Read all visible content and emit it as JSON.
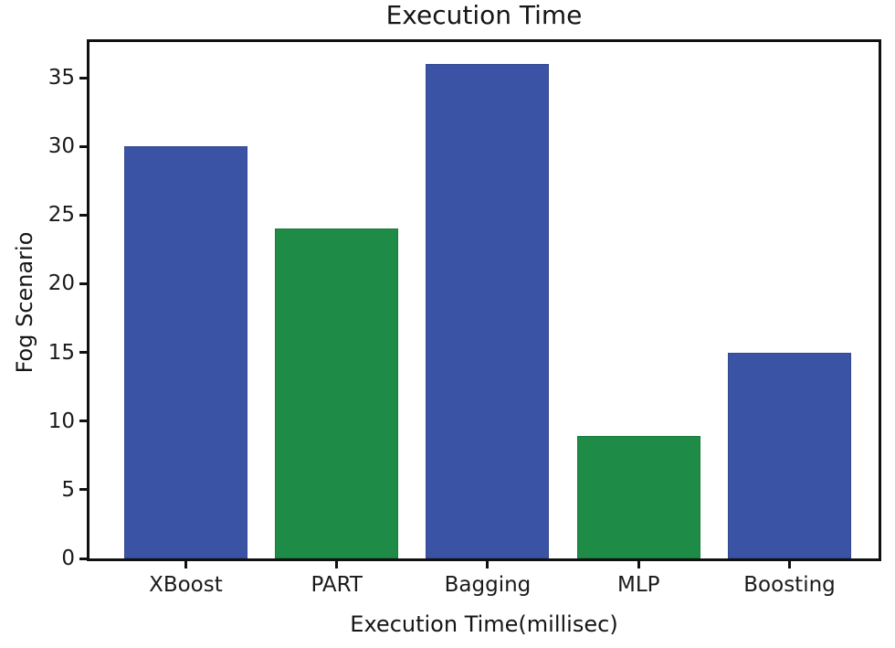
{
  "chart_data": {
    "type": "bar",
    "title": "Execution Time",
    "xlabel": "Execution Time(millisec)",
    "ylabel": "Fog Scenario",
    "categories": [
      "XBoost",
      "PART",
      "Bagging",
      "MLP",
      "Boosting"
    ],
    "values": [
      30,
      24,
      36,
      8.9,
      15
    ],
    "bar_colors": [
      "#3a53a5",
      "#1e8b46",
      "#3a53a5",
      "#1e8b46",
      "#3a53a5"
    ],
    "bar_edge_colors": [
      "#33498f",
      "#1a7a3d",
      "#33498f",
      "#1a7a3d",
      "#33498f"
    ],
    "yticks": [
      0,
      5,
      10,
      15,
      20,
      25,
      30,
      35
    ],
    "ylim": [
      0,
      37.6
    ],
    "grid": false,
    "legend": null,
    "colors": {
      "blue_bar": "#3a53a5",
      "green_bar": "#1e8b46",
      "axis": "#111111",
      "text": "#1a1a1a",
      "background": "#ffffff"
    }
  }
}
